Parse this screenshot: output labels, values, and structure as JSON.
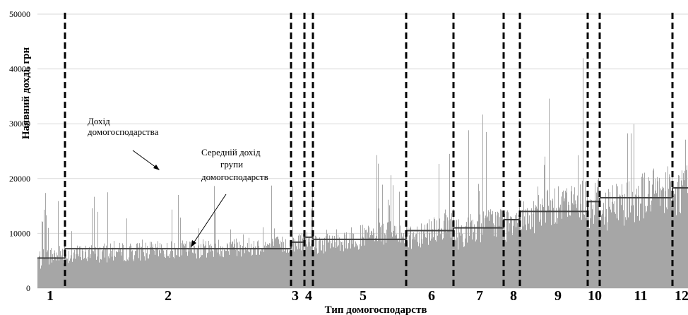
{
  "chart_data": {
    "type": "bar",
    "title": "",
    "xlabel": "Тип домогосподарств",
    "ylabel": "Наявний дохді, грн",
    "ylim": [
      0,
      50000
    ],
    "yticks": [
      "0",
      "10000",
      "20000",
      "30000",
      "40000",
      "50000"
    ],
    "grid": true,
    "colors": {
      "income_bars": "#a6a6a6",
      "mean_line": "#404040",
      "dividers": "#000000",
      "grid": "#d9d9d9"
    },
    "groups": [
      {
        "label": "1",
        "mean": 5500,
        "typical": 6000,
        "spread": 4000
      },
      {
        "label": "2",
        "mean": 7200,
        "typical": 7200,
        "spread": 3500
      },
      {
        "label": "3",
        "mean": 8400,
        "typical": 8500,
        "spread": 4000
      },
      {
        "label": "4",
        "mean": 9300,
        "typical": 9500,
        "spread": 4000
      },
      {
        "label": "5",
        "mean": 8900,
        "typical": 9500,
        "spread": 4500
      },
      {
        "label": "6",
        "mean": 10500,
        "typical": 11000,
        "spread": 5500
      },
      {
        "label": "7",
        "mean": 11000,
        "typical": 11500,
        "spread": 6000
      },
      {
        "label": "8",
        "mean": 12500,
        "typical": 13000,
        "spread": 6500
      },
      {
        "label": "9",
        "mean": 14000,
        "typical": 15000,
        "spread": 7500
      },
      {
        "label": "10",
        "mean": 15800,
        "typical": 16000,
        "spread": 8000
      },
      {
        "label": "11",
        "mean": 16500,
        "typical": 17000,
        "spread": 9000
      },
      {
        "label": "12",
        "mean": 18300,
        "typical": 18500,
        "spread": 9000
      }
    ],
    "annotations": {
      "household_income": [
        "Дохід",
        "домогосподарства"
      ],
      "group_mean": [
        "Середній дохід",
        "групи",
        "домогосподарств"
      ]
    }
  }
}
